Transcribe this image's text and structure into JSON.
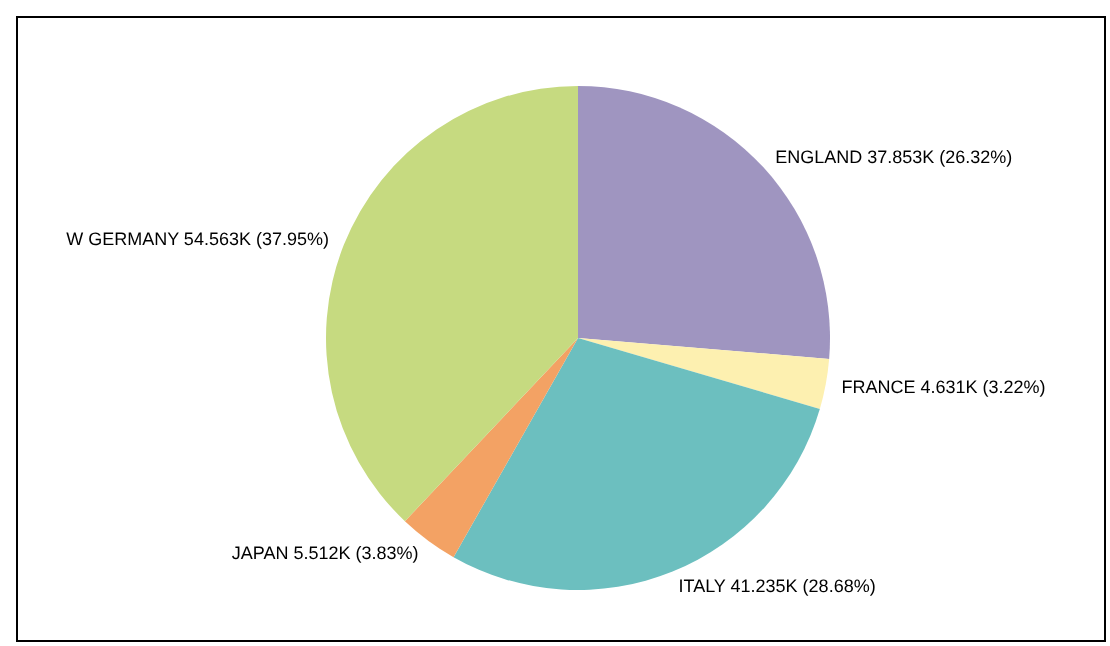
{
  "chart_data": {
    "type": "pie",
    "categories": [
      "ENGLAND",
      "FRANCE",
      "ITALY",
      "JAPAN",
      "W GERMANY"
    ],
    "values": [
      26.32,
      3.22,
      28.68,
      3.83,
      37.95
    ],
    "value_labels": [
      "37.853K (26.32%)",
      "4.631K (3.22%)",
      "41.235K (28.68%)",
      "5.512K (3.83%)",
      "54.563K (37.95%)"
    ],
    "colors": [
      "#9f95c0",
      "#fdf0b0",
      "#6cbfbf",
      "#f3a264",
      "#c6da80"
    ],
    "legend": false
  }
}
